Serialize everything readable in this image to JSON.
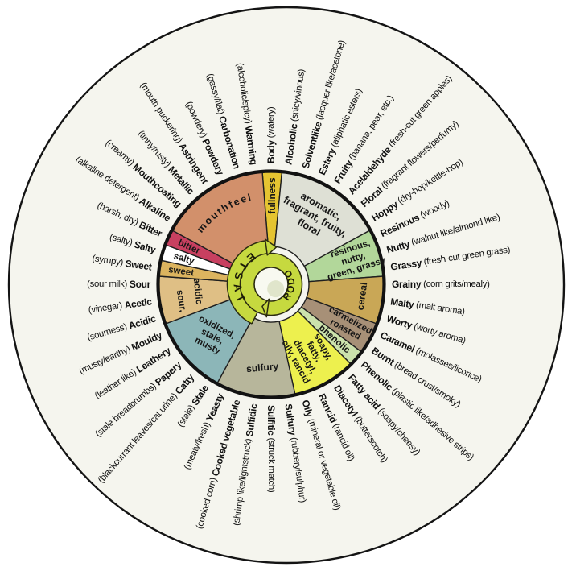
{
  "diagram": {
    "background_color": "#FFFFFF",
    "disc_color": "#F5F5EE",
    "outline_color": "#141414",
    "hub": {
      "taste_label": "TASTE",
      "odor_label": "ODOR",
      "ring_color": "#C6D93F",
      "ring_outline_color": "#2B2B10"
    },
    "segments": [
      {
        "name": "fullness",
        "color": "#E5C431",
        "start": -4.5,
        "end": 5.5,
        "label": {
          "lines": [
            "fullness"
          ],
          "angle": 0.5,
          "radius": 110,
          "rotate": -90,
          "size": 12,
          "lh": 13
        }
      },
      {
        "name": "aromatic, fragrant, fruity, floral",
        "color": "#DEE0D5",
        "start": 5.5,
        "end": 61.4,
        "label": {
          "lines": [
            "aromatic,",
            "fragrant, fruity,",
            "floral"
          ],
          "angle": 33,
          "radius": 100,
          "rotate": 30,
          "size": 12.5,
          "lh": 15
        }
      },
      {
        "name": "resinous, nutty, green, grassy",
        "color": "#B2D79A",
        "start": 61.4,
        "end": 85.9,
        "label": {
          "lines": [
            "resinous,",
            "nutty,",
            "green, grassy"
          ],
          "angle": 73,
          "radius": 107,
          "rotate": -17,
          "size": 11.5,
          "lh": 13
        }
      },
      {
        "name": "cereal",
        "color": "#C9A756",
        "start": 85.9,
        "end": 110.5,
        "label": {
          "lines": [
            "cereal"
          ],
          "angle": 97.5,
          "radius": 114,
          "rotate": -82,
          "size": 12,
          "lh": 13
        }
      },
      {
        "name": "carmelized roasted",
        "color": "#A79077",
        "start": 110.5,
        "end": 126.8,
        "label": {
          "lines": [
            "carmelized",
            "roasted"
          ],
          "angle": 118,
          "radius": 108,
          "rotate": 29,
          "size": 11.5,
          "lh": 13
        }
      },
      {
        "name": "phenolic",
        "color": "#CBE2AC",
        "start": 126.8,
        "end": 135.0,
        "label": {
          "lines": [
            "phenolic"
          ],
          "angle": 131,
          "radius": 104,
          "rotate": 41,
          "size": 11.5,
          "lh": 13
        }
      },
      {
        "name": "soapy, fatty, diacetyl, oily, rancid",
        "color": "#EDF04E",
        "start": 135.0,
        "end": 167.7,
        "label": {
          "lines": [
            "soapy,",
            "fatty,",
            "diacetyl,",
            "oily, rancid"
          ],
          "angle": 151.5,
          "radius": 99,
          "rotate": 61,
          "size": 11.5,
          "lh": 13
        }
      },
      {
        "name": "sulfury",
        "color": "#B7B69B",
        "start": 167.7,
        "end": 208.6,
        "label": {
          "lines": [
            "sulfury"
          ],
          "angle": 186,
          "radius": 104,
          "rotate": -5,
          "size": 12,
          "lh": 13
        }
      },
      {
        "name": "oxidized, stale, musty",
        "color": "#8CB6B8",
        "start": 208.6,
        "end": 249.5,
        "label": {
          "lines": [
            "oxidized,",
            "stale,",
            "musty"
          ],
          "angle": 228.5,
          "radius": 98,
          "rotate": 27,
          "size": 11.5,
          "lh": 13
        }
      },
      {
        "name": "sour, acidic",
        "color": "#DFBF85",
        "start": 249.5,
        "end": 274.1,
        "label": {
          "parts": [
            {
              "text": "sour,",
              "angle": 259.5,
              "radius": 114,
              "rotate": 81
            },
            {
              "text": "acidic",
              "angle": 264.5,
              "radius": 92,
              "rotate": 84
            }
          ],
          "size": 11.5
        }
      },
      {
        "name": "sweet",
        "color": "#DCB45F",
        "start": 274.1,
        "end": 282.3,
        "label": {
          "lines": [
            "sweet"
          ],
          "angle": 278,
          "radius": 113,
          "rotate": 8,
          "size": 11.5,
          "lh": 13
        }
      },
      {
        "name": "salty",
        "color": "#FFFFFF",
        "start": 282.3,
        "end": 290.5,
        "label": {
          "lines": [
            "salty"
          ],
          "angle": 286.2,
          "radius": 113,
          "rotate": 16,
          "size": 11.5,
          "lh": 13
        }
      },
      {
        "name": "bitter",
        "color": "#C84060",
        "start": 290.5,
        "end": 298.6,
        "label": {
          "lines": [
            "bitter"
          ],
          "angle": 294.3,
          "radius": 112,
          "rotate": 24,
          "size": 11.5,
          "lh": 13
        }
      },
      {
        "name": "mouthfeel",
        "color": "#D2906B",
        "start": 298.6,
        "end": 355.5,
        "label": {
          "curved": true,
          "text": "mouthfeel",
          "arc_radius": 107,
          "arc_start": 302,
          "arc_end": 352,
          "size": 12.5
        }
      }
    ],
    "outer_labels": [
      {
        "name": "Body",
        "descriptor": "watery"
      },
      {
        "name": "Alcoholic",
        "descriptor": "spicy/vinous"
      },
      {
        "name": "Solventlike",
        "descriptor": "lacquer like/acetone"
      },
      {
        "name": "Estery",
        "descriptor": "aliphatic esters"
      },
      {
        "name": "Fruity",
        "descriptor": "banana, pear, etc."
      },
      {
        "name": "Acelaldehyde",
        "descriptor": "fresh-cut green apples"
      },
      {
        "name": "Floral",
        "descriptor": "fragrant flowers/perfumy"
      },
      {
        "name": "Hoppy",
        "descriptor": "dry-hop/kettle-hop"
      },
      {
        "name": "Resinous",
        "descriptor": "woody"
      },
      {
        "name": "Nutty",
        "descriptor": "walnut like/almond like"
      },
      {
        "name": "Grassy",
        "descriptor": "fresh-cut green grass"
      },
      {
        "name": "Grainy",
        "descriptor": "corn grits/mealy"
      },
      {
        "name": "Malty",
        "descriptor": "malt aroma"
      },
      {
        "name": "Worty",
        "descriptor": "worty aroma"
      },
      {
        "name": "Caramel",
        "descriptor": "molasses/licorice"
      },
      {
        "name": "Burnt",
        "descriptor": "bread crust/smoky"
      },
      {
        "name": "Phenolic",
        "descriptor": "plastic like/adhesive strips"
      },
      {
        "name": "Fatty acid",
        "descriptor": "soapy/cheesy"
      },
      {
        "name": "Diacetyl",
        "descriptor": "butterscotch"
      },
      {
        "name": "Rancid",
        "descriptor": "rancid oil"
      },
      {
        "name": "Oily",
        "descriptor": "mineral or vegetable oil"
      },
      {
        "name": "Sulfury",
        "descriptor": "rubbery/sulphur"
      },
      {
        "name": "Sulfitic",
        "descriptor": "struck match"
      },
      {
        "name": "Sulfidic",
        "descriptor": "shrimp like/lightstruck"
      },
      {
        "name": "Cooked vegetable",
        "descriptor": "cooked corn"
      },
      {
        "name": "Yeasty",
        "descriptor": "meaty/fresh"
      },
      {
        "name": "Stale",
        "descriptor": "stale"
      },
      {
        "name": "Catty",
        "descriptor": "blackcurrant leaves/cat urine"
      },
      {
        "name": "Papery",
        "descriptor": "stale breadcrumbs"
      },
      {
        "name": "Leathery",
        "descriptor": "leather like"
      },
      {
        "name": "Mouldy",
        "descriptor": "musty/earthy"
      },
      {
        "name": "Acidic",
        "descriptor": "sourness"
      },
      {
        "name": "Acetic",
        "descriptor": "vinegar"
      },
      {
        "name": "Sour",
        "descriptor": "sour milk"
      },
      {
        "name": "Sweet",
        "descriptor": "syrupy"
      },
      {
        "name": "Salty",
        "descriptor": "salty"
      },
      {
        "name": "Bitter",
        "descriptor": "harsh, dry"
      },
      {
        "name": "Alkaline",
        "descriptor": "alkaline detergent"
      },
      {
        "name": "Mouthcoating",
        "descriptor": "creamy"
      },
      {
        "name": "Metallic",
        "descriptor": "tinny/rusty"
      },
      {
        "name": "Astringent",
        "descriptor": "mouth puckering"
      },
      {
        "name": "Powdery",
        "descriptor": "powdery"
      },
      {
        "name": "Carbonation",
        "descriptor": "gassy/flat"
      },
      {
        "name": "Warming",
        "descriptor": "alcoholic/spicy"
      }
    ]
  }
}
